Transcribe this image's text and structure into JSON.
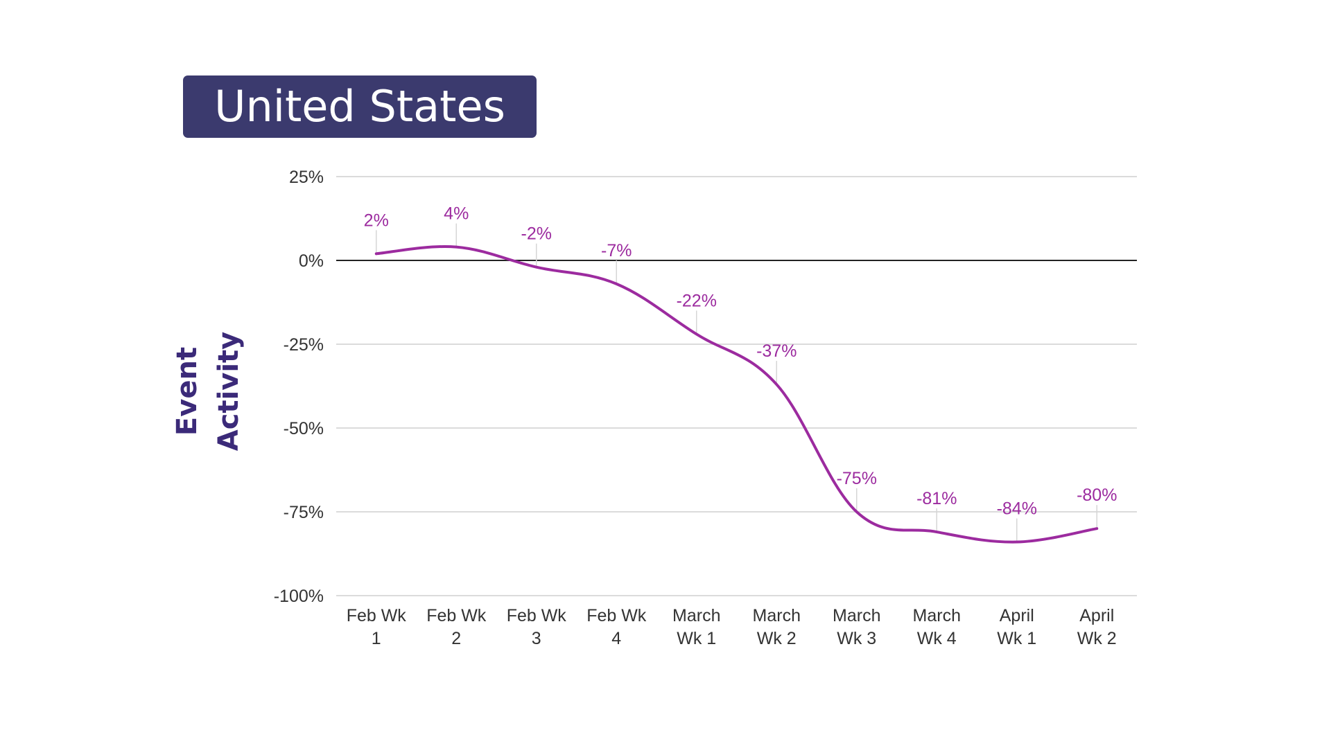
{
  "header": {
    "title": "United States"
  },
  "chart_data": {
    "type": "line",
    "title": "United States",
    "xlabel": "",
    "ylabel": "Event\nActivity",
    "categories": [
      [
        "Feb Wk",
        "1"
      ],
      [
        "Feb Wk",
        "2"
      ],
      [
        "Feb Wk",
        "3"
      ],
      [
        "Feb Wk",
        "4"
      ],
      [
        "March",
        "Wk 1"
      ],
      [
        "March",
        "Wk 2"
      ],
      [
        "March",
        "Wk 3"
      ],
      [
        "March",
        "Wk 4"
      ],
      [
        "April",
        "Wk 1"
      ],
      [
        "April",
        "Wk 2"
      ]
    ],
    "series": [
      {
        "values": [
          2,
          4,
          -2,
          -7,
          -22,
          -37,
          -75,
          -81,
          -84,
          -80
        ],
        "labels": [
          "2%",
          "4%",
          "-2%",
          "-7%",
          "-22%",
          "-37%",
          "-75%",
          "-81%",
          "-84%",
          "-80%"
        ]
      }
    ],
    "yticks": [
      25,
      0,
      -25,
      -50,
      -75,
      -100
    ],
    "ytick_labels": [
      "25%",
      "0%",
      "-25%",
      "-50%",
      "-75%",
      "-100%"
    ],
    "ylim": [
      -100,
      25
    ],
    "grid": true,
    "smooth": true,
    "line_color": "#9c2b9f",
    "label_color": "#9c2b9f",
    "grid_color": "#cfcfcf",
    "zero_line_color": "#222222"
  }
}
